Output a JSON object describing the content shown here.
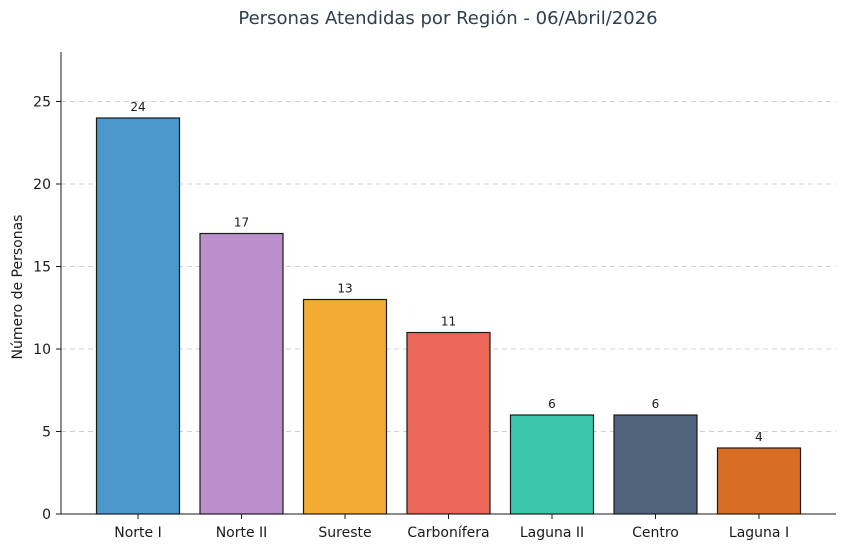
{
  "chart_data": {
    "type": "bar",
    "title": "Personas Atendidas por Región - 06/Abril/2026",
    "xlabel": "",
    "ylabel": "Número de Personas",
    "categories": [
      "Norte I",
      "Norte II",
      "Sureste",
      "Carbonífera",
      "Laguna II",
      "Centro",
      "Laguna I"
    ],
    "values": [
      24,
      17,
      13,
      11,
      6,
      6,
      4
    ],
    "data_labels": [
      "24",
      "17",
      "13",
      "11",
      "6",
      "6",
      "4"
    ],
    "colors": [
      "#4a98cc",
      "#bb8fcc",
      "#f3ab34",
      "#ec6658",
      "#3cc7ad",
      "#51637a",
      "#d86d26"
    ],
    "ylim": [
      0,
      28
    ],
    "yticks": [
      0,
      5,
      10,
      15,
      20,
      25
    ],
    "grid": "y-dashed",
    "legend": "none"
  }
}
